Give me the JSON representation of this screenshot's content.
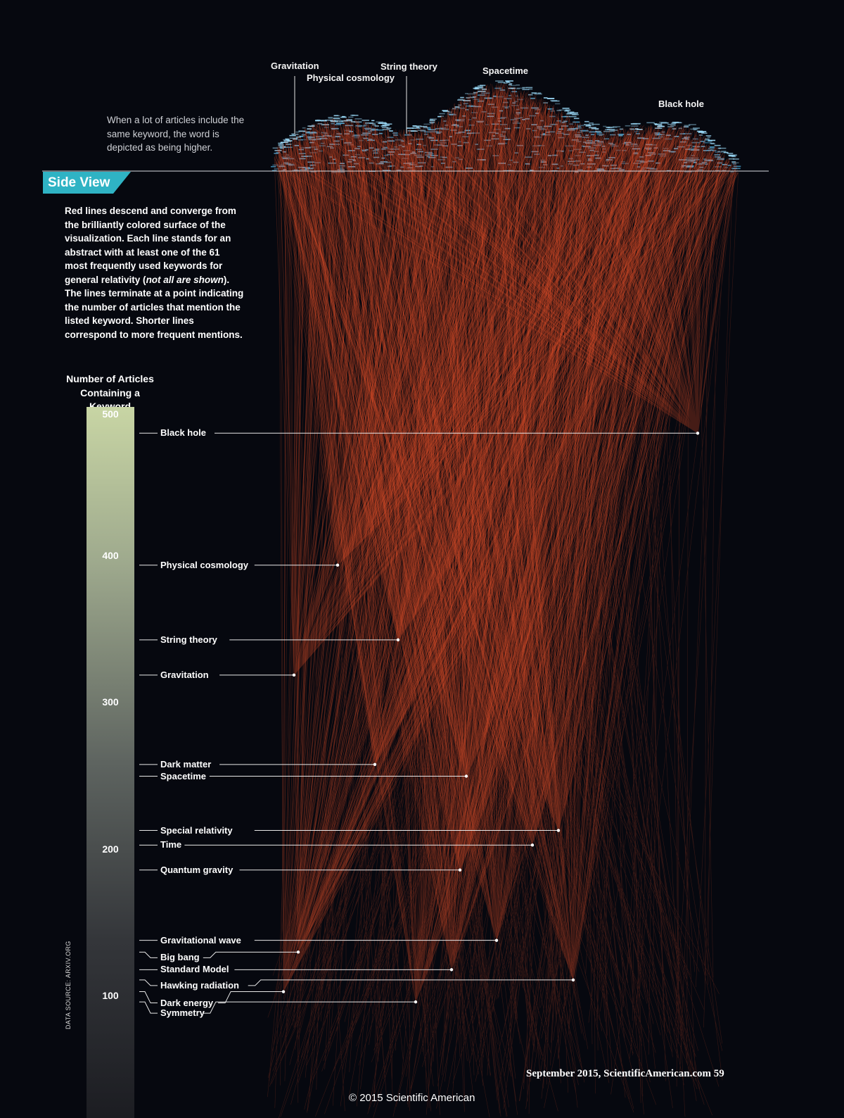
{
  "top_view": {
    "intro": "When a lot of articles include the same keyword, the word is depicted as being higher.",
    "peak_labels": [
      "Gravitation",
      "Physical cosmology",
      "String theory",
      "Spacetime",
      "Black hole"
    ]
  },
  "side_view": {
    "badge": "Side View",
    "description_parts": {
      "before": "Red lines descend and converge from the brilliantly colored surface of the visualization. Each line stands for an abstract with at least one of the 61 most frequently used keywords for general relativity (",
      "italic": "not all are shown",
      "after": "). The lines terminate at a point indicating the number of articles that mention the listed keyword. Shorter lines correspond to more frequent mentions."
    }
  },
  "colors": {
    "background": "#06080f",
    "lines": "#e8532c",
    "surface_points": "#4fb6e8",
    "badge": "#2fb3c4"
  },
  "chart_data": {
    "type": "scatter",
    "ylabel": "Number of Articles Containing a Keyword",
    "ylim": [
      0,
      500
    ],
    "yticks": [
      100,
      200,
      300,
      400,
      500
    ],
    "series": [
      {
        "points": [
          {
            "label": "Black hole",
            "y": 484
          },
          {
            "label": "Physical cosmology",
            "y": 394
          },
          {
            "label": "String theory",
            "y": 343
          },
          {
            "label": "Gravitation",
            "y": 319
          },
          {
            "label": "Dark matter",
            "y": 258
          },
          {
            "label": "Spacetime",
            "y": 250
          },
          {
            "label": "Special relativity",
            "y": 213
          },
          {
            "label": "Time",
            "y": 203
          },
          {
            "label": "Quantum gravity",
            "y": 186
          },
          {
            "label": "Gravitational wave",
            "y": 138
          },
          {
            "label": "Big bang",
            "y": 130
          },
          {
            "label": "Standard Model",
            "y": 118
          },
          {
            "label": "Hawking radiation",
            "y": 111
          },
          {
            "label": "Dark energy",
            "y": 103
          },
          {
            "label": "Symmetry",
            "y": 96
          }
        ]
      }
    ]
  },
  "footer": {
    "source": "DATA SOURCE: ARXIV.ORG",
    "page_line": "September 2015, ScientificAmerican.com  59",
    "copyright": "© 2015 Scientific American"
  }
}
